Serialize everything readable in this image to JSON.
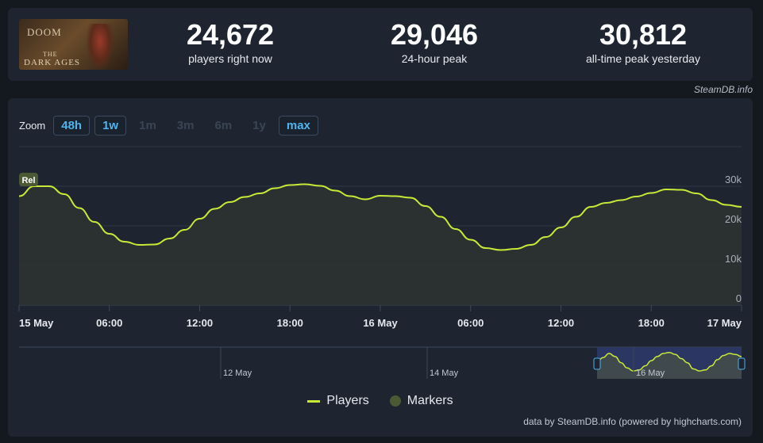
{
  "game": {
    "thumb_title": "DOOM",
    "thumb_sub_small": "THE",
    "thumb_sub": "DARK AGES"
  },
  "stats": [
    {
      "value": "24,672",
      "label": "players right now"
    },
    {
      "value": "29,046",
      "label": "24-hour peak"
    },
    {
      "value": "30,812",
      "label": "all-time peak yesterday"
    }
  ],
  "credit_top": "SteamDB.info",
  "zoom": {
    "label": "Zoom",
    "buttons": [
      {
        "label": "48h",
        "active": true
      },
      {
        "label": "1w",
        "active": true
      },
      {
        "label": "1m",
        "active": false
      },
      {
        "label": "3m",
        "active": false
      },
      {
        "label": "6m",
        "active": false
      },
      {
        "label": "1y",
        "active": false
      },
      {
        "label": "max",
        "active": true
      }
    ]
  },
  "chart_data": {
    "type": "area",
    "title": "",
    "series": [
      {
        "name": "Players",
        "color": "#c7ea38",
        "x": [
          0,
          1,
          2,
          3,
          4,
          5,
          6,
          7,
          8,
          9,
          10,
          11,
          12,
          13,
          14,
          15,
          16,
          17,
          18,
          19,
          20,
          21,
          22,
          23,
          24,
          25,
          26,
          27,
          28,
          29,
          30,
          31,
          32,
          33,
          34,
          35,
          36,
          37,
          38,
          39,
          40,
          41,
          42,
          43,
          44,
          45,
          46,
          47,
          48
        ],
        "values": [
          27500,
          30000,
          30000,
          28000,
          24500,
          21000,
          18000,
          16000,
          15200,
          15300,
          16800,
          19000,
          21800,
          24300,
          26000,
          27300,
          28200,
          29500,
          30300,
          30500,
          30100,
          28900,
          27500,
          26700,
          27600,
          27500,
          27100,
          25000,
          22300,
          19200,
          16500,
          14400,
          13900,
          14200,
          15200,
          17200,
          19600,
          22300,
          24800,
          25800,
          26500,
          27400,
          28300,
          29200,
          29100,
          28200,
          26500,
          25300,
          24800
        ]
      }
    ],
    "markers": [
      {
        "label": "Rel",
        "x": 0,
        "color": "#4b5a34"
      }
    ],
    "x_ticks": [
      {
        "x": 0,
        "label": "15 May"
      },
      {
        "x": 6,
        "label": "06:00"
      },
      {
        "x": 12,
        "label": "12:00"
      },
      {
        "x": 18,
        "label": "18:00"
      },
      {
        "x": 24,
        "label": "16 May"
      },
      {
        "x": 30,
        "label": "06:00"
      },
      {
        "x": 36,
        "label": "12:00"
      },
      {
        "x": 42,
        "label": "18:00"
      },
      {
        "x": 48,
        "label": "17 May"
      }
    ],
    "y_ticks": [
      {
        "y": 0,
        "label": "0"
      },
      {
        "y": 10000,
        "label": "10k"
      },
      {
        "y": 20000,
        "label": "20k"
      },
      {
        "y": 30000,
        "label": "30k"
      }
    ],
    "ylim": [
      0,
      40000
    ],
    "xlim": [
      0,
      48
    ],
    "grid": true,
    "legend": {
      "placement": "bottom-center",
      "items": [
        {
          "label": "Players",
          "type": "line"
        },
        {
          "label": "Markers",
          "type": "dot"
        }
      ]
    },
    "navigator": {
      "labels": [
        "12 May",
        "14 May",
        "16 May"
      ],
      "selection": [
        0.8,
        1.0
      ],
      "values": [
        0.6,
        0.8,
        1.0,
        0.85,
        0.55,
        0.3,
        0.15,
        0.2,
        0.4,
        0.65,
        0.85,
        1.0,
        1.05,
        0.95,
        0.75,
        0.55,
        0.25,
        0.15,
        0.2,
        0.4,
        0.7,
        0.9,
        1.0,
        0.95,
        0.85
      ]
    }
  },
  "credit_bottom": "data by SteamDB.info (powered by highcharts.com)"
}
